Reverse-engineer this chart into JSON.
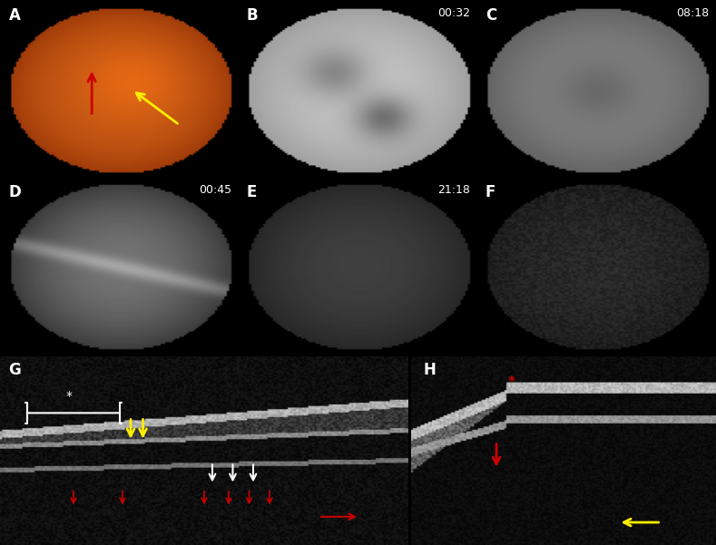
{
  "figure_bg": "#000000",
  "panel_bg_black": "#000000",
  "panel_A_color": "#8B4513",
  "panels_top_layout": [
    {
      "label": "A",
      "col": 0,
      "row": 0,
      "has_time": false,
      "color_type": "fundus"
    },
    {
      "label": "B",
      "col": 1,
      "row": 0,
      "has_time": true,
      "time": "00:32",
      "color_type": "gray_bright"
    },
    {
      "label": "C",
      "col": 2,
      "row": 0,
      "has_time": true,
      "time": "08:18",
      "color_type": "gray_mid"
    },
    {
      "label": "D",
      "col": 0,
      "row": 1,
      "has_time": true,
      "time": "00:45",
      "color_type": "gray_dark"
    },
    {
      "label": "E",
      "col": 1,
      "row": 1,
      "has_time": true,
      "time": "21:18",
      "color_type": "gray_darker"
    },
    {
      "label": "F",
      "col": 2,
      "row": 1,
      "has_time": false,
      "color_type": "gray_darkest"
    }
  ],
  "panels_bottom_layout": [
    {
      "label": "G",
      "col": 0,
      "color_type": "oct_g"
    },
    {
      "label": "H",
      "col": 1,
      "color_type": "oct_h"
    }
  ],
  "label_color": "#ffffff",
  "label_fontsize": 12,
  "time_color": "#ffffff",
  "time_fontsize": 9,
  "arrow_red": "#cc0000",
  "arrow_yellow": "#ffee00",
  "arrow_white": "#ffffff",
  "arrowhead_color_yellow": "#ffee00",
  "arrowhead_color_red": "#cc0000",
  "arrowhead_color_white": "#ffffff"
}
